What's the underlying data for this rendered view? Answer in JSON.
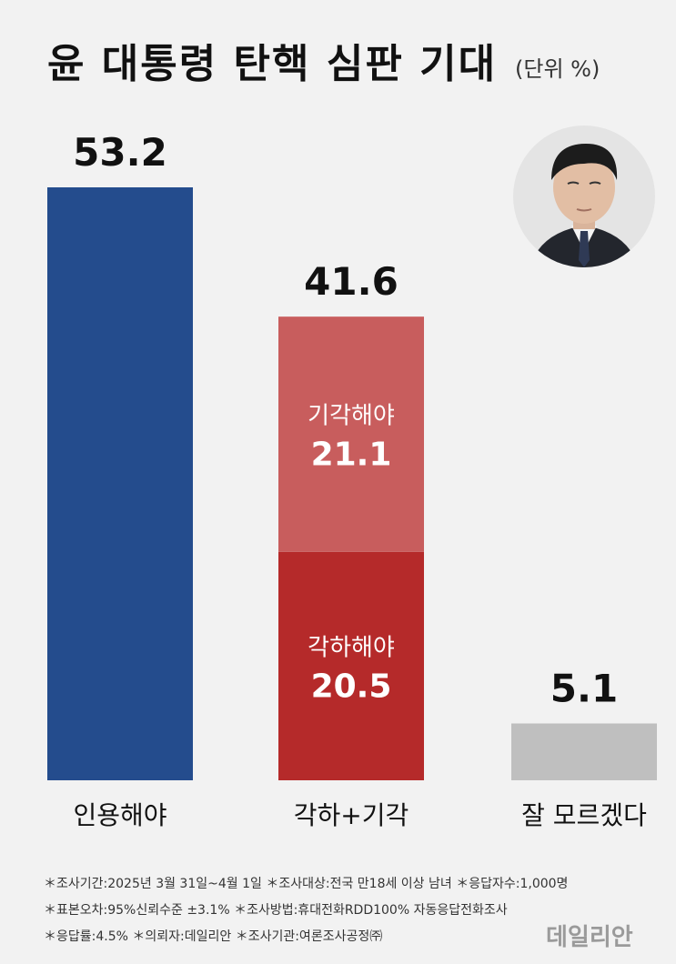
{
  "title": "윤 대통령 탄핵 심판 기대",
  "unit": "(단위 %)",
  "chart_data": {
    "type": "bar",
    "stacked": true,
    "categories": [
      "인용해야",
      "각하+기각",
      "잘 모르겠다"
    ],
    "totals": [
      53.2,
      41.6,
      5.1
    ],
    "segments": [
      {
        "category": "인용해야",
        "label": "",
        "value": 53.2,
        "color": "#244c8d"
      },
      {
        "category": "각하+기각",
        "label": "각하해야",
        "value": 20.5,
        "color": "#b52a2a"
      },
      {
        "category": "각하+기각",
        "label": "기각해야",
        "value": 21.1,
        "color": "#c85d5d"
      },
      {
        "category": "잘 모르겠다",
        "label": "",
        "value": 5.1,
        "color": "#bfbfbf"
      }
    ],
    "ylim": [
      0,
      53.2
    ]
  },
  "footnotes": [
    "＊조사기간:2025년 3월 31일~4월 1일  ＊조사대상:전국 만18세 이상 남녀  ＊응답자수:1,000명",
    "＊표본오차:95%신뢰수준 ±3.1%  ＊조사방법:휴대전화RDD100% 자동응답전화조사",
    "＊응답률:4.5%  ＊의뢰자:데일리안  ＊조사기관:여론조사공정㈜"
  ],
  "logo": "데일리안"
}
